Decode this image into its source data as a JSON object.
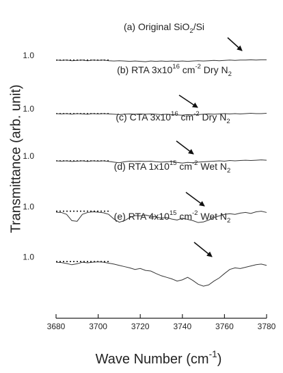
{
  "chart_data": {
    "type": "line",
    "x_label": [
      {
        "text": "Wave Number (cm"
      },
      {
        "text": "-1",
        "script": "super"
      },
      {
        "text": ")"
      }
    ],
    "y_label": "Transmittance (arb. unit)",
    "x": [
      3680,
      3682.5,
      3685,
      3687.5,
      3690,
      3692.5,
      3695,
      3697.5,
      3700,
      3702.5,
      3705,
      3707.5,
      3710,
      3712.5,
      3715,
      3717.5,
      3720,
      3722.5,
      3725,
      3727.5,
      3730,
      3732.5,
      3735,
      3737.5,
      3740,
      3742.5,
      3745,
      3747.5,
      3750,
      3752.5,
      3755,
      3757.5,
      3760,
      3762.5,
      3765,
      3767.5,
      3770,
      3772.5,
      3775,
      3777.5,
      3780
    ],
    "xlim": [
      3680,
      3780
    ],
    "xticks": [
      3680,
      3700,
      3720,
      3740,
      3760,
      3780
    ],
    "ylim": [
      0,
      10
    ],
    "yticks": [
      {
        "value": 8.2,
        "label": "1.0"
      },
      {
        "value": 6.5,
        "label": "1.0"
      },
      {
        "value": 5.0,
        "label": "1.0"
      },
      {
        "value": 3.4,
        "label": "1.0"
      },
      {
        "value": 1.8,
        "label": "1.0"
      }
    ],
    "reference_lines": true,
    "series": [
      {
        "color": "#333333",
        "values": [
          8.2,
          8.19,
          8.2,
          8.18,
          8.19,
          8.2,
          8.18,
          8.2,
          8.19,
          8.2,
          8.18,
          8.17,
          8.18,
          8.17,
          8.16,
          8.17,
          8.16,
          8.15,
          8.17,
          8.16,
          8.17,
          8.16,
          8.17,
          8.16,
          8.17,
          8.16,
          8.17,
          8.18,
          8.17,
          8.18,
          8.19,
          8.18,
          8.19,
          8.2,
          8.19,
          8.2,
          8.2,
          8.21,
          8.2,
          8.21,
          8.21
        ]
      },
      {
        "color": "#333333",
        "values": [
          6.5,
          6.49,
          6.5,
          6.48,
          6.5,
          6.49,
          6.48,
          6.5,
          6.49,
          6.5,
          6.49,
          6.48,
          6.47,
          6.48,
          6.49,
          6.48,
          6.49,
          6.48,
          6.49,
          6.48,
          6.47,
          6.48,
          6.47,
          6.46,
          6.45,
          6.47,
          6.46,
          6.47,
          6.48,
          6.49,
          6.48,
          6.49,
          6.5,
          6.49,
          6.5,
          6.49,
          6.5,
          6.51,
          6.5,
          6.5,
          6.51
        ]
      },
      {
        "color": "#333333",
        "values": [
          5.0,
          4.99,
          5.0,
          4.98,
          4.99,
          5.0,
          4.98,
          5.0,
          4.99,
          5.0,
          4.98,
          4.96,
          4.94,
          4.97,
          4.99,
          4.98,
          4.99,
          4.98,
          4.99,
          4.97,
          4.96,
          4.97,
          4.98,
          4.95,
          4.93,
          4.95,
          4.94,
          4.96,
          4.97,
          4.98,
          4.99,
          5.0,
          4.99,
          5.01,
          5.0,
          5.01,
          5.02,
          5.01,
          5.02,
          5.03,
          5.02
        ]
      },
      {
        "color": "#333333",
        "values": [
          3.37,
          3.36,
          3.3,
          3.1,
          3.08,
          3.3,
          3.36,
          3.38,
          3.37,
          3.35,
          3.3,
          3.15,
          3.05,
          3.1,
          3.2,
          3.26,
          3.25,
          3.28,
          3.24,
          3.22,
          3.18,
          3.2,
          3.15,
          3.12,
          3.18,
          3.14,
          3.1,
          3.04,
          3.06,
          3.12,
          3.2,
          3.25,
          3.3,
          3.32,
          3.3,
          3.34,
          3.36,
          3.33,
          3.38,
          3.4,
          3.36
        ]
      },
      {
        "color": "#333333",
        "values": [
          1.78,
          1.77,
          1.74,
          1.7,
          1.73,
          1.78,
          1.76,
          1.78,
          1.79,
          1.78,
          1.75,
          1.72,
          1.68,
          1.64,
          1.6,
          1.55,
          1.58,
          1.52,
          1.5,
          1.42,
          1.35,
          1.3,
          1.25,
          1.18,
          1.22,
          1.3,
          1.2,
          1.08,
          1.02,
          1.06,
          1.18,
          1.28,
          1.42,
          1.55,
          1.6,
          1.58,
          1.62,
          1.66,
          1.7,
          1.72,
          1.68
        ]
      }
    ],
    "annotations": [
      [
        {
          "text": "(a) Original SiO"
        },
        {
          "text": "2",
          "script": "sub"
        },
        {
          "text": "/Si"
        }
      ],
      [
        {
          "text": "(b) RTA 3x10"
        },
        {
          "text": "16",
          "script": "super"
        },
        {
          "text": " cm"
        },
        {
          "text": "-2",
          "script": "super"
        },
        {
          "text": " Dry N"
        },
        {
          "text": "2",
          "script": "sub"
        }
      ],
      [
        {
          "text": "(c) CTA 3x10"
        },
        {
          "text": "16",
          "script": "super"
        },
        {
          "text": " cm"
        },
        {
          "text": "-2",
          "script": "super"
        },
        {
          "text": " Dry N"
        },
        {
          "text": "2",
          "script": "sub"
        }
      ],
      [
        {
          "text": "(d) RTA 1x10"
        },
        {
          "text": "15",
          "script": "super"
        },
        {
          "text": " cm"
        },
        {
          "text": "-2",
          "script": "super"
        },
        {
          "text": " Wet N"
        },
        {
          "text": "2",
          "script": "sub"
        }
      ],
      [
        {
          "text": "(e) RTA 4x10"
        },
        {
          "text": "15",
          "script": "super"
        },
        {
          "text": " cm"
        },
        {
          "text": "-2",
          "script": "super"
        },
        {
          "text": " Wet N"
        },
        {
          "text": "2",
          "script": "sub"
        }
      ]
    ]
  }
}
